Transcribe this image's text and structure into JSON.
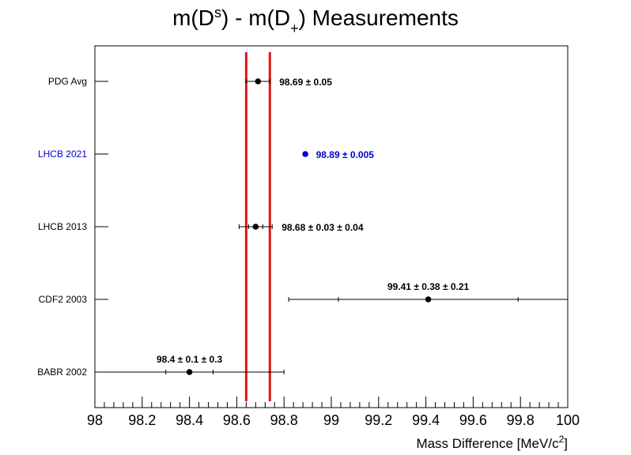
{
  "chart_data": {
    "type": "scatter",
    "title": {
      "main": "m(D",
      "sup": "s",
      "mid": ") - m(D",
      "sub": "+",
      "end": ") Measurements"
    },
    "xlabel": {
      "main": "Mass Difference [MeV/c",
      "sup": "2",
      "end": "]"
    },
    "ylabel": "",
    "xlim": [
      98,
      100
    ],
    "x_ticks": [
      "98",
      "98.2",
      "98.4",
      "98.6",
      "98.8",
      "99",
      "99.2",
      "99.4",
      "99.6",
      "99.8",
      "100"
    ],
    "grid": false,
    "legend": "none",
    "band": {
      "low": 98.64,
      "high": 98.74,
      "color": "#e01515"
    },
    "measurements": [
      {
        "label": "PDG Avg",
        "value": 98.69,
        "stat_err": 0.05,
        "sys_err": null,
        "value_text": "98.69",
        "error_texts": [
          "± 0.05"
        ],
        "color": "#000000"
      },
      {
        "label": "LHCB 2021",
        "value": 98.89,
        "stat_err": 0.005,
        "sys_err": null,
        "value_text": "98.89",
        "error_texts": [
          "± 0.005"
        ],
        "color": "#0000d0"
      },
      {
        "label": "LHCB 2013",
        "value": 98.68,
        "stat_err": 0.03,
        "sys_err": 0.04,
        "value_text": "98.68",
        "error_texts": [
          "± 0.03",
          "± 0.04"
        ],
        "color": "#000000"
      },
      {
        "label": "CDF2 2003",
        "value": 99.41,
        "stat_err": 0.38,
        "sys_err": 0.21,
        "value_text": "99.41",
        "error_texts": [
          "± 0.38",
          "± 0.21"
        ],
        "color": "#000000"
      },
      {
        "label": "BABR 2002",
        "value": 98.4,
        "stat_err": 0.1,
        "sys_err": 0.3,
        "value_text": "98.4",
        "error_texts": [
          "± 0.1",
          "± 0.3"
        ],
        "color": "#000000"
      }
    ]
  }
}
